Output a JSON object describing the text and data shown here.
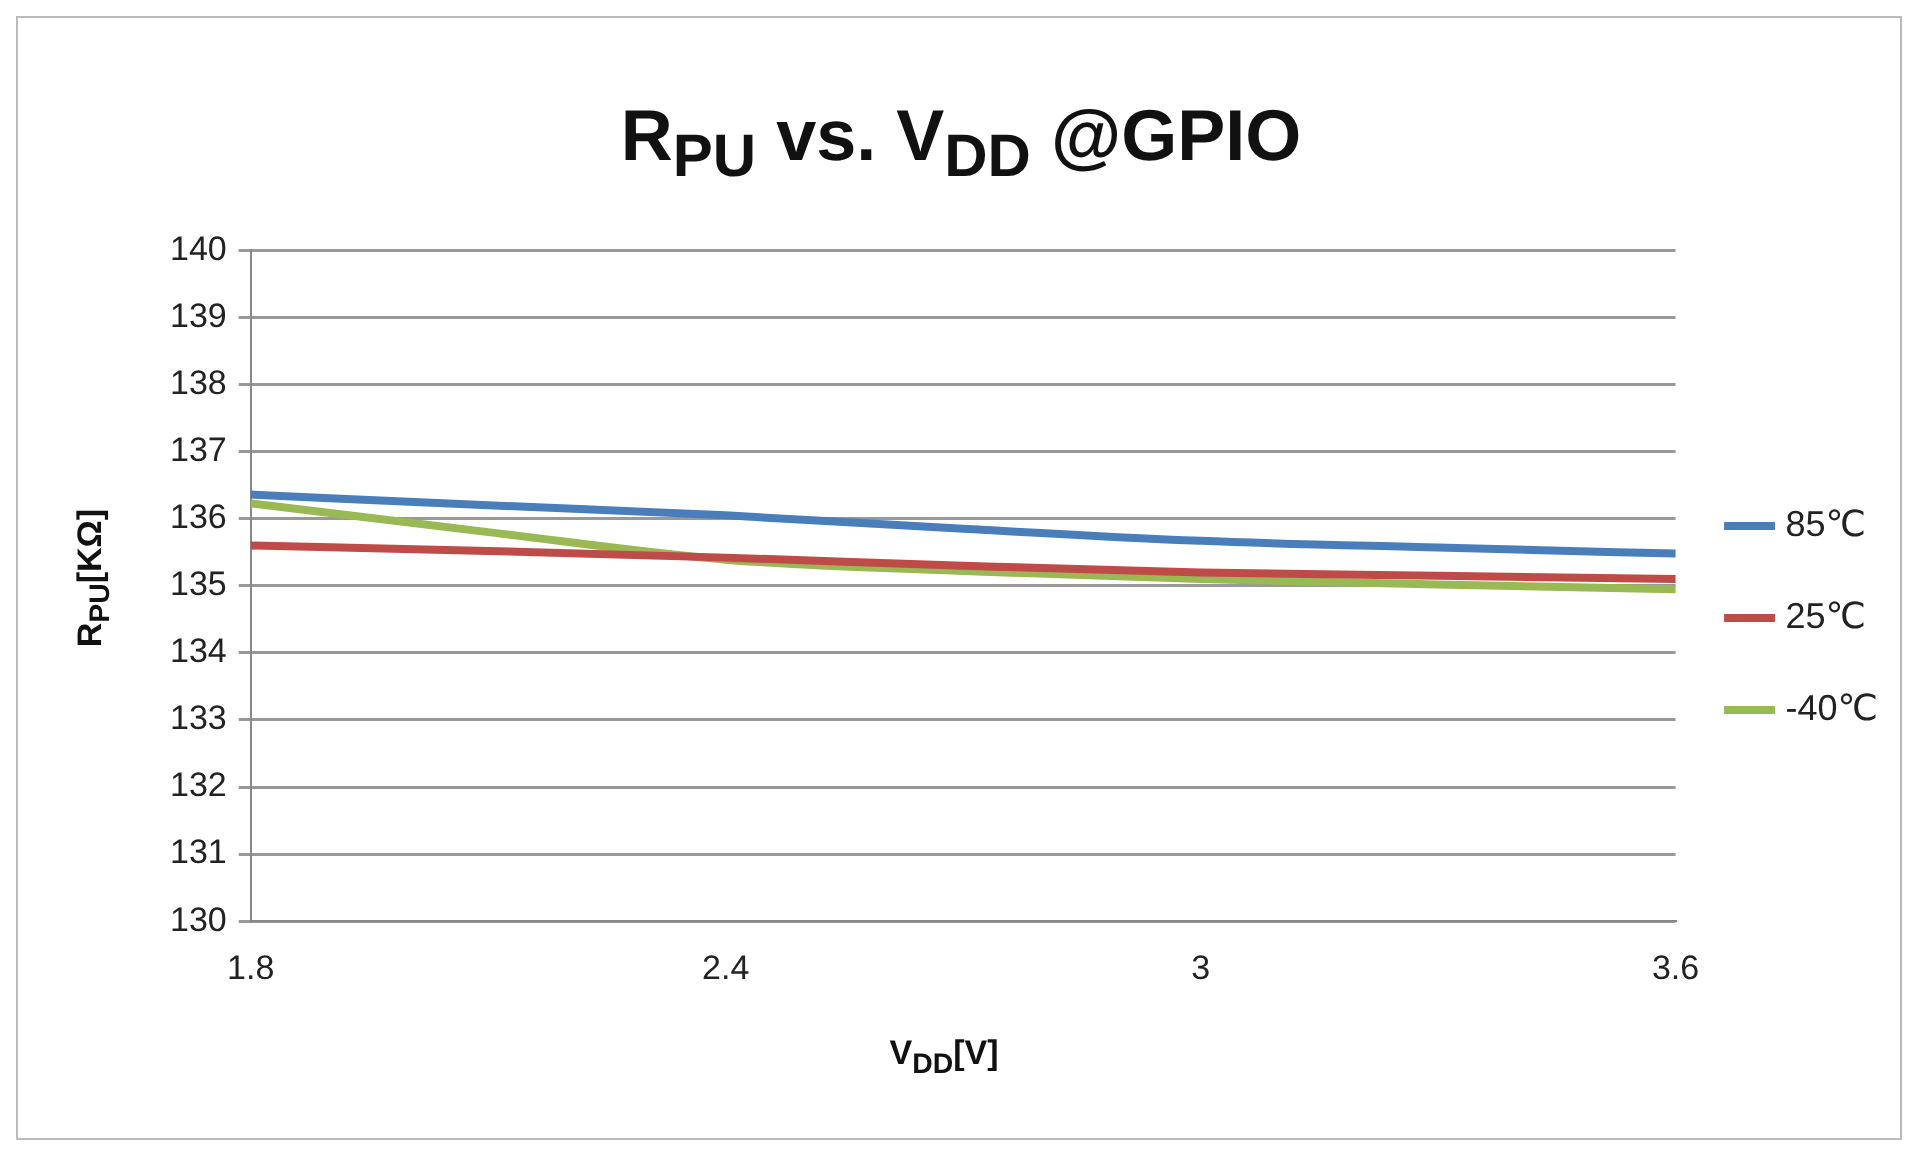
{
  "chart_data": {
    "type": "line",
    "title": "R$_{PU}$ vs. V$_{DD}$ @GPIO",
    "xlabel": "V$_{DD}$[V]",
    "ylabel": "R$_{PU}$[KΩ]",
    "x": [
      1.8,
      2.1,
      2.4,
      2.7,
      3.0,
      3.3,
      3.6
    ],
    "series": [
      {
        "name": "85℃",
        "color": "#4a7ebb",
        "values": [
          136.36,
          136.2,
          136.05,
          135.85,
          135.67,
          135.57,
          135.48
        ]
      },
      {
        "name": "25℃",
        "color": "#be4b48",
        "values": [
          135.6,
          135.52,
          135.42,
          135.3,
          135.2,
          135.15,
          135.1
        ]
      },
      {
        "name": "-40℃",
        "color": "#98b954",
        "values": [
          136.23,
          135.8,
          135.39,
          135.22,
          135.1,
          135.02,
          134.95
        ]
      }
    ],
    "xlim": [
      1.8,
      3.6
    ],
    "xticks": [
      1.8,
      2.4,
      3,
      3.6
    ],
    "ylim": [
      130,
      140
    ],
    "yticks": [
      130,
      131,
      132,
      133,
      134,
      135,
      136,
      137,
      138,
      139,
      140
    ],
    "grid": "y",
    "legend": "right",
    "marker": "none",
    "line_style": "solid"
  }
}
